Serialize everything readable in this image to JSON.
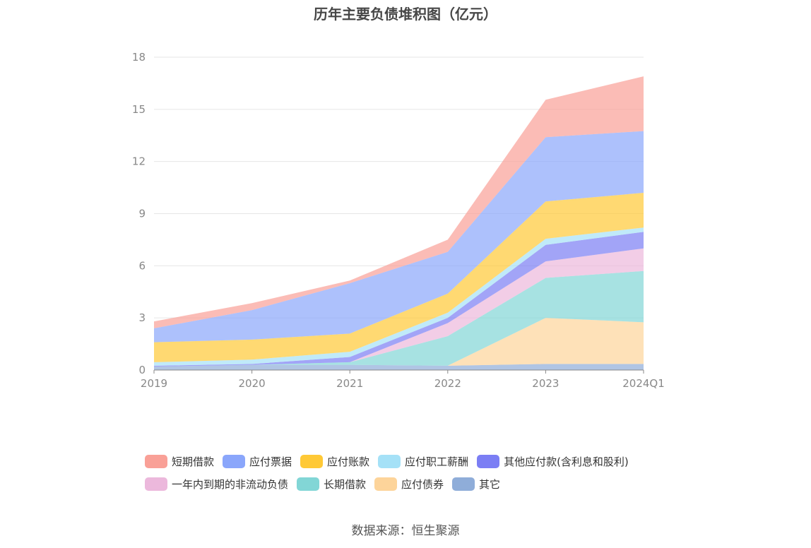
{
  "chart_data": {
    "type": "area",
    "stacked": true,
    "title": "历年主要负债堆积图（亿元）",
    "source": "数据来源：恒生聚源",
    "x": [
      "2019",
      "2020",
      "2021",
      "2022",
      "2023",
      "2024Q1"
    ],
    "ylim": [
      0,
      18
    ],
    "yticks": [
      "0",
      "3",
      "6",
      "9",
      "12",
      "15",
      "18"
    ],
    "grid": true,
    "legend_position": "bottom",
    "series": [
      {
        "name": "其它",
        "color": "#8fadd9",
        "values": [
          0.2,
          0.3,
          0.3,
          0.25,
          0.35,
          0.35
        ]
      },
      {
        "name": "应付债券",
        "color": "#fdd49a",
        "values": [
          0,
          0,
          0,
          0,
          2.65,
          2.4
        ]
      },
      {
        "name": "长期借款",
        "color": "#82d6d6",
        "values": [
          0,
          0,
          0.15,
          1.7,
          2.3,
          2.95
        ]
      },
      {
        "name": "一年内到期的非流动负债",
        "color": "#ecb8dc",
        "values": [
          0,
          0,
          0,
          0.75,
          0.95,
          1.3
        ]
      },
      {
        "name": "其他应付款(含利息和股利)",
        "color": "#7b7ef4",
        "values": [
          0.05,
          0.05,
          0.3,
          0.3,
          0.95,
          0.95
        ]
      },
      {
        "name": "应付职工薪酬",
        "color": "#a5e1f7",
        "values": [
          0.2,
          0.25,
          0.3,
          0.3,
          0.35,
          0.25
        ]
      },
      {
        "name": "应付账款",
        "color": "#ffc936",
        "values": [
          1.15,
          1.15,
          1.05,
          1.1,
          2.15,
          2.0
        ]
      },
      {
        "name": "应付票据",
        "color": "#8aa6fb",
        "values": [
          0.8,
          1.7,
          2.9,
          2.4,
          3.7,
          3.55
        ]
      },
      {
        "name": "短期借款",
        "color": "#f9a097",
        "values": [
          0.4,
          0.4,
          0.15,
          0.7,
          2.15,
          3.15
        ]
      }
    ]
  },
  "legend_rows": [
    [
      "短期借款",
      "应付票据",
      "应付账款",
      "应付职工薪酬",
      "其他应付款(含利息和股利)"
    ],
    [
      "一年内到期的非流动负债",
      "长期借款",
      "应付债券",
      "其它"
    ]
  ]
}
